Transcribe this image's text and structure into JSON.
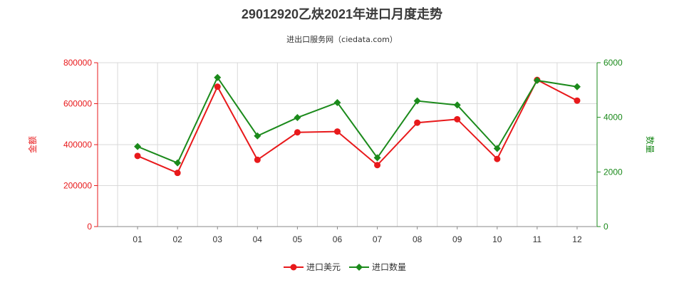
{
  "chart_data": {
    "type": "line",
    "title": "29012920乙炔2021年进口月度走势",
    "subtitle": "进出口服务网（ciedata.com）",
    "categories": [
      "01",
      "02",
      "03",
      "04",
      "05",
      "06",
      "07",
      "08",
      "09",
      "10",
      "11",
      "12"
    ],
    "y_left": {
      "label": "金额",
      "range": [
        0,
        800000
      ],
      "ticks": [
        "0",
        "200000",
        "400000",
        "600000",
        "800000"
      ],
      "color": "#e8191b"
    },
    "y_right": {
      "label": "数量",
      "range": [
        0,
        6000
      ],
      "ticks": [
        "0",
        "2000",
        "4000",
        "6000"
      ],
      "color": "#1b8a1b"
    },
    "series": [
      {
        "name": "进口美元",
        "axis": "left",
        "color": "#e8191b",
        "marker": "circle",
        "values": [
          345000,
          262000,
          683000,
          326000,
          460000,
          464000,
          300000,
          507000,
          524000,
          330000,
          716000,
          615000
        ]
      },
      {
        "name": "进口数量",
        "axis": "right",
        "color": "#1b8a1b",
        "marker": "diamond",
        "values": [
          2930,
          2330,
          5460,
          3320,
          3990,
          4540,
          2520,
          4600,
          4450,
          2860,
          5350,
          5120
        ]
      }
    ],
    "grid": true,
    "legend_position": "bottom-center"
  }
}
